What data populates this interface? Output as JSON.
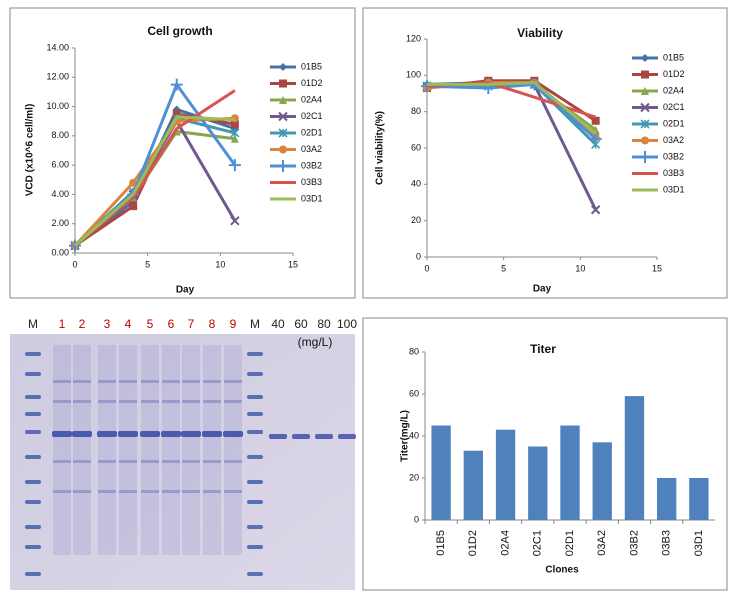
{
  "chart_data": [
    {
      "type": "line",
      "title": "Cell growth",
      "x_label": "Day",
      "y_label": "VCD (x10^6 cell/ml)",
      "x": [
        0,
        4,
        7,
        11
      ],
      "xlim": [
        0,
        15
      ],
      "xticks": [
        0,
        5,
        10,
        15
      ],
      "ylim": [
        0,
        14
      ],
      "yticks": [
        {
          "value": 0,
          "label": "0.00"
        },
        {
          "value": 2,
          "label": "2.00"
        },
        {
          "value": 4,
          "label": "4.00"
        },
        {
          "value": 6,
          "label": "6.00"
        },
        {
          "value": 8,
          "label": "8.00"
        },
        {
          "value": 10,
          "label": "10.00"
        },
        {
          "value": 12,
          "label": "12.00"
        },
        {
          "value": 14,
          "label": "14.00"
        }
      ],
      "grid": false,
      "legend": "right",
      "series": [
        {
          "name": "01B5",
          "color": "#4572a7",
          "marker": "diamond",
          "values": [
            0.5,
            3.5,
            9.8,
            8.5
          ]
        },
        {
          "name": "01D2",
          "color": "#aa4643",
          "marker": "square",
          "values": [
            0.5,
            3.2,
            9.5,
            8.8
          ]
        },
        {
          "name": "02A4",
          "color": "#89a54e",
          "marker": "triangle",
          "values": [
            0.5,
            3.8,
            8.3,
            7.8
          ]
        },
        {
          "name": "02C1",
          "color": "#71588f",
          "marker": "x",
          "values": [
            0.5,
            4.0,
            9.0,
            2.2
          ]
        },
        {
          "name": "02D1",
          "color": "#4198af",
          "marker": "star",
          "values": [
            0.5,
            4.2,
            9.2,
            8.2
          ]
        },
        {
          "name": "03A2",
          "color": "#db843d",
          "marker": "circle",
          "values": [
            0.5,
            4.8,
            9.0,
            9.2
          ]
        },
        {
          "name": "03B2",
          "color": "#4f8fd6",
          "marker": "plus",
          "values": [
            0.5,
            4.0,
            11.5,
            6.0
          ]
        },
        {
          "name": "03B3",
          "color": "#d9534f",
          "marker": "none",
          "values": [
            0.5,
            3.8,
            8.5,
            11.1
          ]
        },
        {
          "name": "03D1",
          "color": "#9bbb59",
          "marker": "none",
          "values": [
            0.5,
            4.0,
            9.3,
            9.1
          ]
        }
      ]
    },
    {
      "type": "line",
      "title": "Viability",
      "x_label": "Day",
      "y_label": "Cell viability(%)",
      "x": [
        0,
        4,
        7,
        11
      ],
      "xlim": [
        0,
        15
      ],
      "xticks": [
        0,
        5,
        10,
        15
      ],
      "ylim": [
        0,
        120
      ],
      "yticks": [
        0,
        20,
        40,
        60,
        80,
        100,
        120
      ],
      "grid": false,
      "legend": "right",
      "series": [
        {
          "name": "01B5",
          "color": "#4572a7",
          "marker": "diamond",
          "values": [
            95,
            96,
            96,
            68
          ]
        },
        {
          "name": "01D2",
          "color": "#aa4643",
          "marker": "square",
          "values": [
            93,
            97,
            97,
            75
          ]
        },
        {
          "name": "02A4",
          "color": "#89a54e",
          "marker": "triangle",
          "values": [
            94,
            95,
            95,
            70
          ]
        },
        {
          "name": "02C1",
          "color": "#71588f",
          "marker": "x",
          "values": [
            94,
            96,
            95,
            26
          ]
        },
        {
          "name": "02D1",
          "color": "#4198af",
          "marker": "star",
          "values": [
            94,
            94,
            95,
            62
          ]
        },
        {
          "name": "03A2",
          "color": "#db843d",
          "marker": "circle",
          "values": [
            93,
            96,
            96,
            66
          ]
        },
        {
          "name": "03B2",
          "color": "#4f8fd6",
          "marker": "plus",
          "values": [
            94,
            93,
            95,
            65
          ]
        },
        {
          "name": "03B3",
          "color": "#d9534f",
          "marker": "none",
          "values": [
            94,
            96,
            88,
            77
          ]
        },
        {
          "name": "03D1",
          "color": "#9bbb59",
          "marker": "none",
          "values": [
            95,
            95,
            96,
            68
          ]
        }
      ]
    },
    {
      "type": "bar",
      "title": "Titer",
      "x_label": "Clones",
      "y_label": "Titer(mg/L)",
      "categories": [
        "01B5",
        "01D2",
        "02A4",
        "02C1",
        "02D1",
        "03A2",
        "03B2",
        "03B3",
        "03D1"
      ],
      "values": [
        45,
        33,
        43,
        35,
        45,
        37,
        59,
        20,
        20
      ],
      "color": "#4f81bd",
      "ylim": [
        0,
        80
      ],
      "yticks": [
        0,
        20,
        40,
        60,
        80
      ],
      "grid": false
    }
  ],
  "gel": {
    "unit": "(mg/L)",
    "lanes": [
      {
        "label": "M",
        "color": "#222222"
      },
      {
        "label": "1",
        "color": "#c00000"
      },
      {
        "label": "2",
        "color": "#c00000"
      },
      {
        "label": "3",
        "color": "#c00000"
      },
      {
        "label": "4",
        "color": "#c00000"
      },
      {
        "label": "5",
        "color": "#c00000"
      },
      {
        "label": "6",
        "color": "#c00000"
      },
      {
        "label": "7",
        "color": "#c00000"
      },
      {
        "label": "8",
        "color": "#c00000"
      },
      {
        "label": "9",
        "color": "#c00000"
      },
      {
        "label": "M",
        "color": "#222222"
      },
      {
        "label": "40",
        "color": "#222222"
      },
      {
        "label": "60",
        "color": "#222222"
      },
      {
        "label": "80",
        "color": "#222222"
      },
      {
        "label": "100",
        "color": "#222222"
      }
    ]
  }
}
